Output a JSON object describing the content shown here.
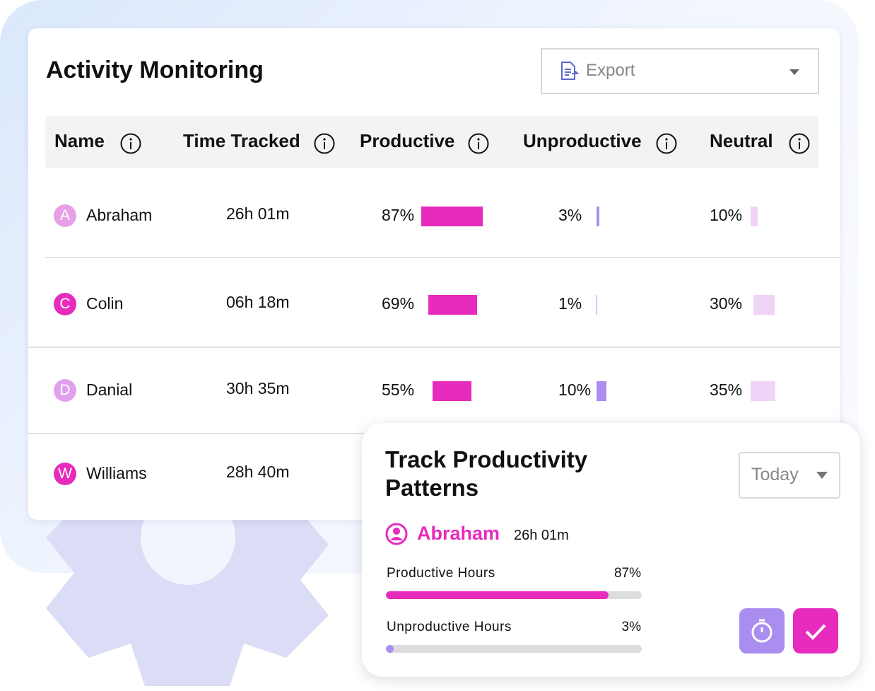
{
  "header": {
    "title": "Activity Monitoring",
    "export": "Export"
  },
  "table": {
    "columns": [
      "Name",
      "Time Tracked",
      "Productive",
      "Unproductive",
      "Neutral"
    ],
    "rows": [
      {
        "initial": "A",
        "name": "Abraham",
        "time": "26h 01m",
        "productive": {
          "value": 87,
          "label": "87%"
        },
        "unproductive": {
          "value": 3,
          "label": "3%"
        },
        "neutral": {
          "value": 10,
          "label": "10%"
        }
      },
      {
        "initial": "C",
        "name": "Colin",
        "time": "06h 18m",
        "productive": {
          "value": 69,
          "label": "69%"
        },
        "unproductive": {
          "value": 1,
          "label": "1%"
        },
        "neutral": {
          "value": 30,
          "label": "30%"
        }
      },
      {
        "initial": "D",
        "name": "Danial",
        "time": "30h 35m",
        "productive": {
          "value": 55,
          "label": "55%"
        },
        "unproductive": {
          "value": 10,
          "label": "10%"
        },
        "neutral": {
          "value": 35,
          "label": "35%"
        }
      },
      {
        "initial": "W",
        "name": "Williams",
        "time": "28h 40m"
      }
    ]
  },
  "card": {
    "title": "Track Productivity Patterns",
    "period": "Today",
    "user": "Abraham",
    "time": "26h 01m",
    "metrics": [
      {
        "name": "Productive Hours",
        "value": 87,
        "label": "87%",
        "color": "#e62bbd"
      },
      {
        "name": "Unproductive Hours",
        "value": 3,
        "label": "3%",
        "color": "#a98ef0"
      }
    ]
  }
}
